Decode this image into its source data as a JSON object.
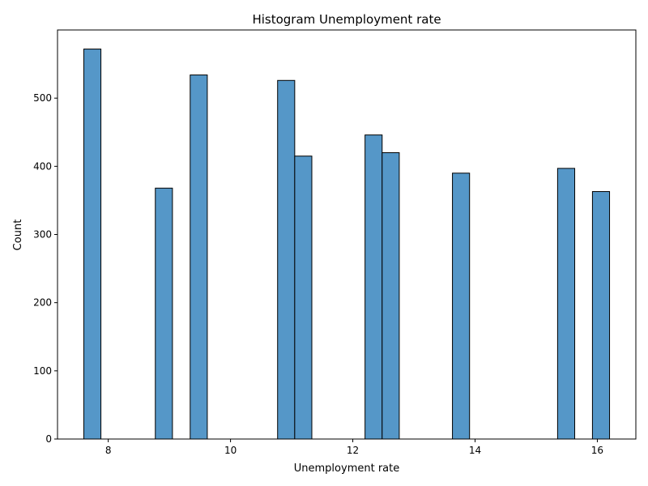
{
  "chart_data": {
    "type": "bar",
    "title": "Histogram Unemployment rate",
    "xlabel": "Unemployment rate",
    "ylabel": "Count",
    "xlim": [
      7.17,
      16.63
    ],
    "ylim": [
      0,
      600
    ],
    "xticks": [
      8,
      10,
      12,
      14,
      16
    ],
    "yticks": [
      0,
      100,
      200,
      300,
      400,
      500
    ],
    "bar_color": "#5597c8",
    "edge_color": "#000000",
    "grid": false,
    "bins": [
      {
        "x0": 7.6,
        "x1": 7.88,
        "count": 572
      },
      {
        "x0": 8.77,
        "x1": 9.05,
        "count": 368
      },
      {
        "x0": 9.34,
        "x1": 9.62,
        "count": 534
      },
      {
        "x0": 10.77,
        "x1": 11.05,
        "count": 526
      },
      {
        "x0": 11.05,
        "x1": 11.33,
        "count": 415
      },
      {
        "x0": 12.2,
        "x1": 12.48,
        "count": 446
      },
      {
        "x0": 12.48,
        "x1": 12.76,
        "count": 420
      },
      {
        "x0": 13.63,
        "x1": 13.91,
        "count": 390
      },
      {
        "x0": 15.35,
        "x1": 15.63,
        "count": 397
      },
      {
        "x0": 15.92,
        "x1": 16.2,
        "count": 363
      }
    ]
  }
}
